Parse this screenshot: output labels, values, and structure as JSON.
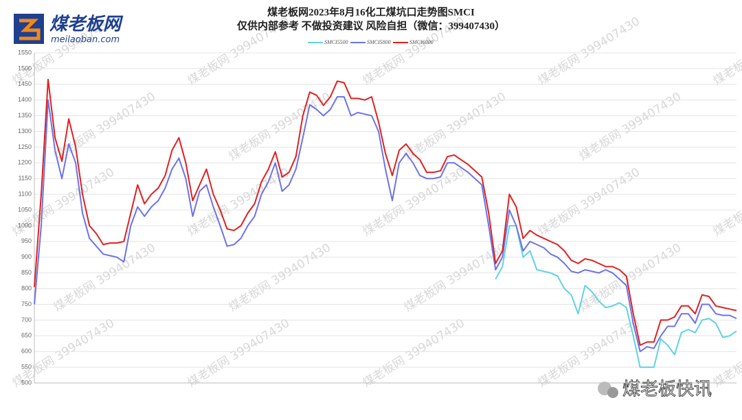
{
  "logo": {
    "name": "煤老板网",
    "domain": "meilaoban.com"
  },
  "watermark": "煤老板网 399407430",
  "footer_brand": "煤老板快讯",
  "chart_data": {
    "type": "line",
    "title": "煤老板网2023年8月16化工煤坑口走势图SMCI",
    "subtitle": "仅供内部参考 不做投资建议 风险自担（微信：399407430）",
    "categories": [
      null,
      null,
      null,
      null,
      null,
      null,
      null,
      null,
      null,
      null,
      null,
      null,
      null,
      null,
      null,
      null,
      null,
      null,
      null,
      null,
      null,
      null,
      null,
      null,
      null,
      null,
      null,
      null,
      null,
      null,
      null,
      null,
      null,
      null,
      null,
      null,
      null,
      null,
      null,
      null,
      null,
      null,
      null,
      null,
      null,
      null,
      null,
      null,
      null,
      null,
      null,
      null,
      null,
      null,
      null,
      null,
      null,
      null,
      null,
      null,
      null,
      null,
      null,
      null,
      null,
      null,
      null,
      null,
      null,
      null,
      null,
      null,
      null,
      null,
      null,
      null,
      null,
      null,
      null,
      null,
      null,
      null,
      null,
      null,
      null,
      null,
      null,
      null,
      null,
      null,
      null,
      null,
      null,
      null,
      null,
      null,
      null,
      null,
      null,
      null,
      null,
      null,
      null
    ],
    "series": [
      {
        "name": "SMCI5500",
        "color": "#5fd3e2",
        "values": [
          null,
          null,
          null,
          null,
          null,
          null,
          null,
          null,
          null,
          null,
          null,
          null,
          null,
          null,
          null,
          null,
          null,
          null,
          null,
          null,
          null,
          null,
          null,
          null,
          null,
          null,
          null,
          null,
          null,
          null,
          null,
          null,
          null,
          null,
          null,
          null,
          null,
          null,
          null,
          null,
          null,
          null,
          null,
          null,
          null,
          null,
          null,
          null,
          null,
          null,
          null,
          null,
          null,
          null,
          null,
          null,
          null,
          null,
          null,
          null,
          null,
          null,
          null,
          null,
          null,
          null,
          null,
          830,
          870,
          1000,
          1000,
          900,
          920,
          860,
          855,
          850,
          840,
          800,
          780,
          720,
          810,
          790,
          760,
          740,
          745,
          755,
          740,
          650,
          550,
          550,
          550,
          640,
          620,
          590,
          660,
          670,
          660,
          700,
          705,
          690,
          645,
          650,
          665
        ]
      },
      {
        "name": "SMCI5800",
        "color": "#6b72ea",
        "values": [
          750,
          1000,
          1400,
          1240,
          1150,
          1260,
          1200,
          1040,
          960,
          935,
          910,
          905,
          900,
          885,
          1000,
          1060,
          1030,
          1060,
          1080,
          1120,
          1180,
          1215,
          1150,
          1030,
          1110,
          1130,
          1060,
          1000,
          935,
          940,
          960,
          1000,
          1030,
          1100,
          1140,
          1200,
          1110,
          1130,
          1180,
          1280,
          1385,
          1370,
          1350,
          1370,
          1410,
          1410,
          1350,
          1360,
          1355,
          1350,
          1300,
          1180,
          1080,
          1200,
          1230,
          1200,
          1160,
          1150,
          1150,
          1155,
          1200,
          1200,
          1185,
          1170,
          1150,
          1130,
          1000,
          860,
          900,
          1050,
          1000,
          920,
          950,
          940,
          930,
          910,
          900,
          880,
          855,
          850,
          860,
          855,
          850,
          860,
          850,
          830,
          810,
          690,
          600,
          615,
          610,
          650,
          680,
          680,
          720,
          720,
          690,
          750,
          750,
          720,
          715,
          715,
          705
        ]
      },
      {
        "name": "SMCI6000",
        "color": "#e0201f",
        "values": [
          805,
          1100,
          1465,
          1280,
          1205,
          1340,
          1250,
          1100,
          1000,
          975,
          940,
          945,
          945,
          950,
          1040,
          1130,
          1070,
          1100,
          1120,
          1160,
          1240,
          1280,
          1200,
          1080,
          1130,
          1180,
          1100,
          1050,
          990,
          985,
          1000,
          1040,
          1070,
          1140,
          1180,
          1235,
          1155,
          1170,
          1220,
          1350,
          1425,
          1415,
          1383,
          1410,
          1460,
          1455,
          1405,
          1405,
          1400,
          1410,
          1330,
          1230,
          1160,
          1240,
          1260,
          1230,
          1210,
          1170,
          1170,
          1175,
          1220,
          1225,
          1210,
          1195,
          1175,
          1155,
          1040,
          880,
          920,
          1100,
          1060,
          960,
          985,
          970,
          960,
          950,
          940,
          920,
          890,
          880,
          895,
          890,
          880,
          870,
          870,
          860,
          840,
          720,
          620,
          630,
          630,
          700,
          700,
          710,
          745,
          745,
          720,
          780,
          775,
          745,
          740,
          735,
          730
        ]
      }
    ],
    "ylim": [
      500,
      1550
    ],
    "yticks": [
      500,
      550,
      600,
      650,
      700,
      750,
      800,
      850,
      900,
      950,
      1000,
      1050,
      1100,
      1150,
      1200,
      1250,
      1300,
      1350,
      1400,
      1450,
      1500,
      1550
    ],
    "grid": true,
    "legend": "top"
  }
}
